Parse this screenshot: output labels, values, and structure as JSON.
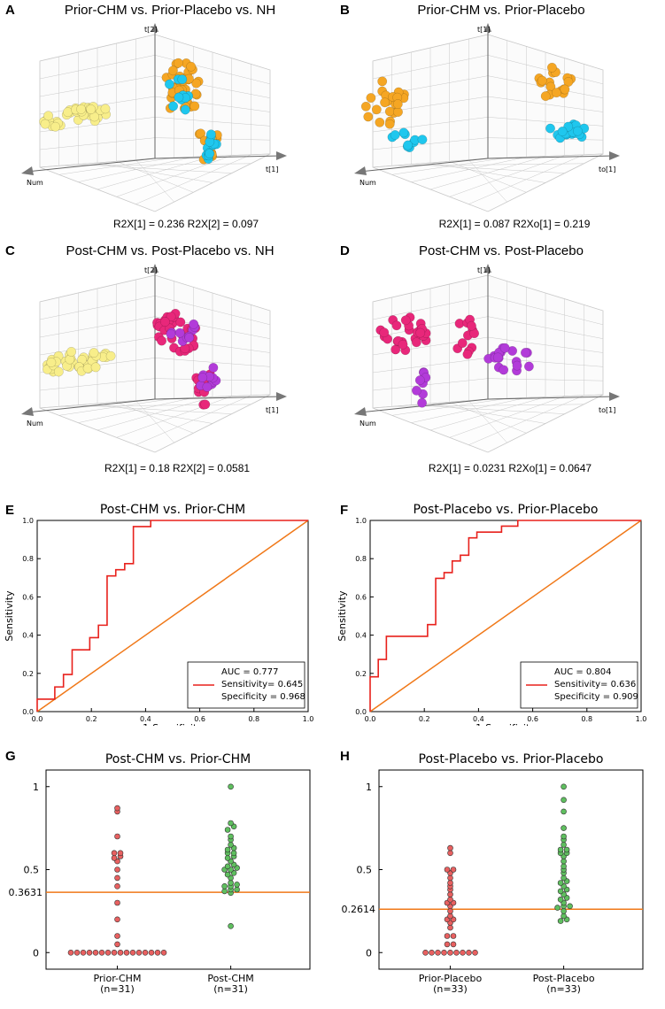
{
  "colors": {
    "yellow": "#f8ee8a",
    "orange": "#f5a623",
    "cyan": "#1fc7ee",
    "magenta": "#e8277a",
    "purple": "#b23bd9",
    "roc_red": "#e8211c",
    "diag_orange": "#f07818",
    "dot_red": "#e86060",
    "dot_green": "#5fbf5f",
    "cutoff": "#f07818"
  },
  "panels": {
    "A": {
      "label": "A",
      "title": "Prior-CHM vs. Prior-Placebo vs. NH",
      "caption": "R2X[1] = 0.236 R2X[2] = 0.097",
      "axis_up": "t[2]",
      "axis_left": "Num",
      "axis_right": "t[1]",
      "groups": [
        {
          "name": "NH",
          "color": "yellow"
        },
        {
          "name": "Prior-CHM",
          "color": "orange"
        },
        {
          "name": "Prior-Placebo",
          "color": "cyan"
        }
      ]
    },
    "B": {
      "label": "B",
      "title": "Prior-CHM vs. Prior-Placebo",
      "caption": "R2X[1] = 0.087  R2Xo[1] = 0.219",
      "axis_up": "t[1]",
      "axis_left": "Num",
      "axis_right": "to[1]",
      "groups": [
        {
          "name": "Prior-CHM",
          "color": "orange"
        },
        {
          "name": "Prior-Placebo",
          "color": "cyan"
        }
      ]
    },
    "C": {
      "label": "C",
      "title": "Post-CHM vs. Post-Placebo vs. NH",
      "caption": "R2X[1] = 0.18   R2X[2] = 0.0581",
      "axis_up": "t[2]",
      "axis_left": "Num",
      "axis_right": "t[1]",
      "groups": [
        {
          "name": "NH",
          "color": "yellow"
        },
        {
          "name": "Post-CHM",
          "color": "magenta"
        },
        {
          "name": "Post-Placebo",
          "color": "purple"
        }
      ]
    },
    "D": {
      "label": "D",
      "title": "Post-CHM vs. Post-Placebo",
      "caption": "R2X[1] = 0.0231  R2Xo[1] = 0.0647",
      "axis_up": "t[1]",
      "axis_left": "Num",
      "axis_right": "to[1]",
      "groups": [
        {
          "name": "Post-CHM",
          "color": "magenta"
        },
        {
          "name": "Post-Placebo",
          "color": "purple"
        }
      ]
    }
  },
  "chart_data": [
    {
      "panel": "E",
      "type": "line",
      "title": "Post-CHM vs. Prior-CHM",
      "xlabel": "1-Specificity",
      "ylabel": "Sensitivity",
      "xlim": [
        0,
        1
      ],
      "ylim": [
        0,
        1
      ],
      "xticks": [
        "0.0",
        "0.2",
        "0.4",
        "0.6",
        "0.8",
        "1.0"
      ],
      "yticks": [
        "0.0",
        "0.2",
        "0.4",
        "0.6",
        "0.8",
        "1.0"
      ],
      "legend": [
        "AUC = 0.777",
        "Sensitivity= 0.645",
        "Specificity = 0.968"
      ],
      "series": [
        {
          "name": "ROC",
          "x": [
            0,
            0,
            0.065,
            0.065,
            0.097,
            0.097,
            0.129,
            0.129,
            0.194,
            0.194,
            0.226,
            0.226,
            0.258,
            0.258,
            0.29,
            0.29,
            0.323,
            0.323,
            0.355,
            0.355,
            0.419,
            0.419,
            1
          ],
          "y": [
            0,
            0.065,
            0.065,
            0.129,
            0.129,
            0.194,
            0.194,
            0.323,
            0.323,
            0.387,
            0.387,
            0.452,
            0.452,
            0.71,
            0.71,
            0.742,
            0.742,
            0.774,
            0.774,
            0.968,
            0.968,
            1,
            1
          ]
        },
        {
          "name": "diagonal",
          "x": [
            0,
            1
          ],
          "y": [
            0,
            1
          ]
        }
      ]
    },
    {
      "panel": "F",
      "type": "line",
      "title": "Post-Placebo vs. Prior-Placebo",
      "xlabel": "1-Specificity",
      "ylabel": "Sensitivity",
      "xlim": [
        0,
        1
      ],
      "ylim": [
        0,
        1
      ],
      "xticks": [
        "0.0",
        "0.2",
        "0.4",
        "0.6",
        "0.8",
        "1.0"
      ],
      "yticks": [
        "0.0",
        "0.2",
        "0.4",
        "0.6",
        "0.8",
        "1.0"
      ],
      "legend": [
        "AUC = 0.804",
        "Sensitivity= 0.636",
        "Specificity = 0.909"
      ],
      "series": [
        {
          "name": "ROC",
          "x": [
            0,
            0,
            0.03,
            0.03,
            0.06,
            0.06,
            0.212,
            0.212,
            0.242,
            0.242,
            0.273,
            0.273,
            0.303,
            0.303,
            0.333,
            0.333,
            0.364,
            0.364,
            0.394,
            0.394,
            0.485,
            0.485,
            0.545,
            0.545,
            1
          ],
          "y": [
            0,
            0.182,
            0.182,
            0.273,
            0.273,
            0.394,
            0.394,
            0.455,
            0.455,
            0.697,
            0.697,
            0.727,
            0.727,
            0.788,
            0.788,
            0.818,
            0.818,
            0.909,
            0.909,
            0.939,
            0.939,
            0.97,
            0.97,
            1,
            1
          ]
        },
        {
          "name": "diagonal",
          "x": [
            0,
            1
          ],
          "y": [
            0,
            1
          ]
        }
      ]
    },
    {
      "panel": "G",
      "type": "scatter",
      "title": "Post-CHM vs. Prior-CHM",
      "ylim": [
        -0.1,
        1.1
      ],
      "yticks": [
        "0",
        "0.5",
        "1"
      ],
      "cutoff": 0.3631,
      "cutoff_label": "0.3631",
      "groups": [
        {
          "name": "Prior-CHM",
          "n": "(n=31)",
          "color": "dot_red",
          "values": [
            0,
            0,
            0,
            0,
            0,
            0,
            0,
            0,
            0,
            0,
            0,
            0,
            0,
            0,
            0,
            0,
            0.05,
            0.1,
            0.2,
            0.3,
            0.4,
            0.45,
            0.5,
            0.55,
            0.57,
            0.58,
            0.6,
            0.6,
            0.7,
            0.85,
            0.87
          ]
        },
        {
          "name": "Post-CHM",
          "n": "(n=31)",
          "color": "dot_green",
          "values": [
            0.16,
            0.36,
            0.37,
            0.38,
            0.38,
            0.4,
            0.4,
            0.41,
            0.42,
            0.45,
            0.47,
            0.48,
            0.5,
            0.5,
            0.51,
            0.52,
            0.53,
            0.55,
            0.57,
            0.58,
            0.6,
            0.6,
            0.62,
            0.63,
            0.65,
            0.68,
            0.7,
            0.74,
            0.76,
            0.78,
            1.0
          ]
        }
      ]
    },
    {
      "panel": "H",
      "type": "scatter",
      "title": "Post-Placebo vs. Prior-Placebo",
      "ylim": [
        -0.1,
        1.1
      ],
      "yticks": [
        "0",
        "0.5",
        "1"
      ],
      "cutoff": 0.2614,
      "cutoff_label": "0.2614",
      "groups": [
        {
          "name": "Prior-Placebo",
          "n": "(n=33)",
          "color": "dot_red",
          "values": [
            0,
            0,
            0,
            0,
            0,
            0,
            0,
            0,
            0,
            0.05,
            0.05,
            0.1,
            0.1,
            0.15,
            0.18,
            0.2,
            0.2,
            0.22,
            0.25,
            0.28,
            0.3,
            0.3,
            0.32,
            0.35,
            0.38,
            0.4,
            0.42,
            0.45,
            0.48,
            0.5,
            0.5,
            0.6,
            0.63
          ]
        },
        {
          "name": "Post-Placebo",
          "n": "(n=33)",
          "color": "dot_green",
          "values": [
            0.19,
            0.2,
            0.22,
            0.25,
            0.27,
            0.28,
            0.28,
            0.3,
            0.32,
            0.33,
            0.35,
            0.37,
            0.38,
            0.4,
            0.42,
            0.43,
            0.45,
            0.48,
            0.5,
            0.52,
            0.55,
            0.58,
            0.6,
            0.6,
            0.62,
            0.62,
            0.65,
            0.68,
            0.7,
            0.75,
            0.85,
            0.92,
            1.0
          ]
        }
      ]
    }
  ]
}
